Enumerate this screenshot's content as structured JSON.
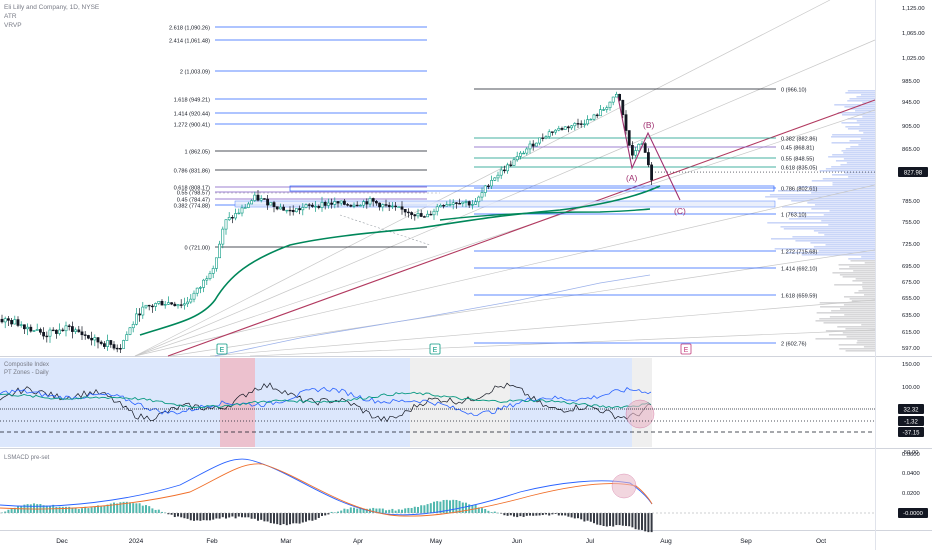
{
  "header": {
    "symbol_line": "Eli Lilly and Company, 1D, NYSE",
    "line2": "ATR",
    "line3": "VRVP"
  },
  "price_axis": {
    "ticks": [
      "1,125.00",
      "1,065.00",
      "1,025.00",
      "985.00",
      "945.00",
      "905.00",
      "865.00",
      "785.00",
      "755.00",
      "725.00",
      "695.00",
      "675.00",
      "655.00",
      "635.00",
      "615.00",
      "597.00"
    ],
    "last_price": "827.98",
    "last_price_color": "#131722"
  },
  "fib_left": [
    {
      "label": "2.618 (1,090.26)"
    },
    {
      "label": "2.414 (1,061.48)"
    },
    {
      "label": "2 (1,003.09)"
    },
    {
      "label": "1.618 (949.21)"
    },
    {
      "label": "1.414 (920.44)"
    },
    {
      "label": "1.272 (900.41)"
    },
    {
      "label": "1 (862.05)"
    },
    {
      "label": "0.786 (831.86)"
    },
    {
      "label": "0.618 (808.17)"
    },
    {
      "label": "0.55 (798.57)"
    },
    {
      "label": "0.45 (784.47)"
    },
    {
      "label": "0.382 (774.88)"
    },
    {
      "label": "0 (721.00)"
    }
  ],
  "fib_right": [
    {
      "label": "0 (966.10)"
    },
    {
      "label": "0.382 (882.86)"
    },
    {
      "label": "0.45 (868.81)"
    },
    {
      "label": "0.55 (848.55)"
    },
    {
      "label": "0.618 (835.05)"
    },
    {
      "label": "0.786 (802.61)"
    },
    {
      "label": "1 (763.10)"
    },
    {
      "label": "1.272 (715.68)"
    },
    {
      "label": "1.414 (692.10)"
    },
    {
      "label": "1.618 (659.59)"
    },
    {
      "label": "2 (602.76)"
    }
  ],
  "wave_labels": {
    "a": "(A)",
    "b": "(B)",
    "c": "(C)"
  },
  "event_markers": [
    "E",
    "E",
    "E"
  ],
  "composite": {
    "title": "Composite Index",
    "subtitle": "PT Zones - Daily",
    "axis": [
      "150.00",
      "100.00",
      "50.00",
      "0.00",
      "-50.00"
    ],
    "badges": [
      {
        "text": "32.32",
        "bg": "#131722"
      },
      {
        "text": "-1.32",
        "bg": "#131722"
      },
      {
        "text": "-37.15",
        "bg": "#131722"
      }
    ]
  },
  "macd": {
    "title": "LSMACD pre-set",
    "axis": [
      "0.0600",
      "0.0400",
      "0.0200",
      "0.0000"
    ],
    "badge": "-0.0000"
  },
  "time_axis": [
    "Dec",
    "2024",
    "Feb",
    "Mar",
    "Apr",
    "May",
    "Jun",
    "Jul",
    "Aug",
    "Sep",
    "Oct"
  ],
  "colors": {
    "bull": "#089981",
    "bear": "#131722",
    "fib_blue": "#2962ff",
    "ma_green": "#00875a",
    "trend_red": "#b23a60",
    "wave_pink": "#a03070",
    "zone_blue": "#d6e3fb",
    "zone_pink": "#e9b6c6",
    "zone_gray": "#ececec"
  }
}
